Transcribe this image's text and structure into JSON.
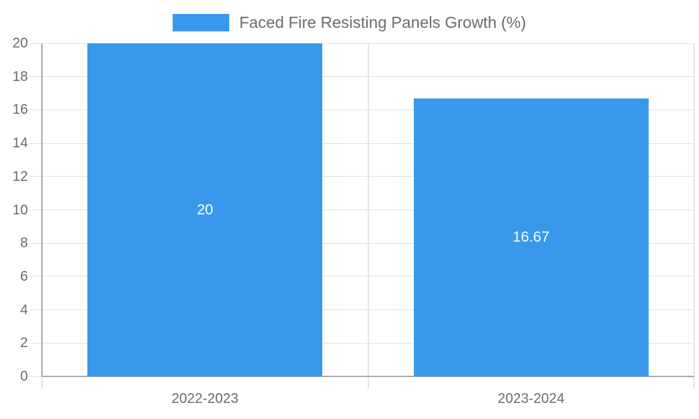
{
  "chart_data": {
    "type": "bar",
    "title": "",
    "legend": {
      "label": "Faced Fire Resisting Panels Growth (%)",
      "position": "top-center"
    },
    "categories": [
      "2022-2023",
      "2023-2024"
    ],
    "series": [
      {
        "name": "Faced Fire Resisting Panels Growth (%)",
        "values": [
          20,
          16.67
        ]
      }
    ],
    "data_labels": [
      "20",
      "16.67"
    ],
    "ylim": [
      0,
      20
    ],
    "ytick_step": 2,
    "yticks": [
      0,
      2,
      4,
      6,
      8,
      10,
      12,
      14,
      16,
      18,
      20
    ],
    "grid": true,
    "colors": {
      "bar": "#3899ec",
      "grid_h": "#e2e2e2",
      "grid_v": "#e6e6e6",
      "axis": "#ababab",
      "text": "#6b6b6b",
      "data_label_text": "#ffffff",
      "background": "#ffffff"
    }
  }
}
